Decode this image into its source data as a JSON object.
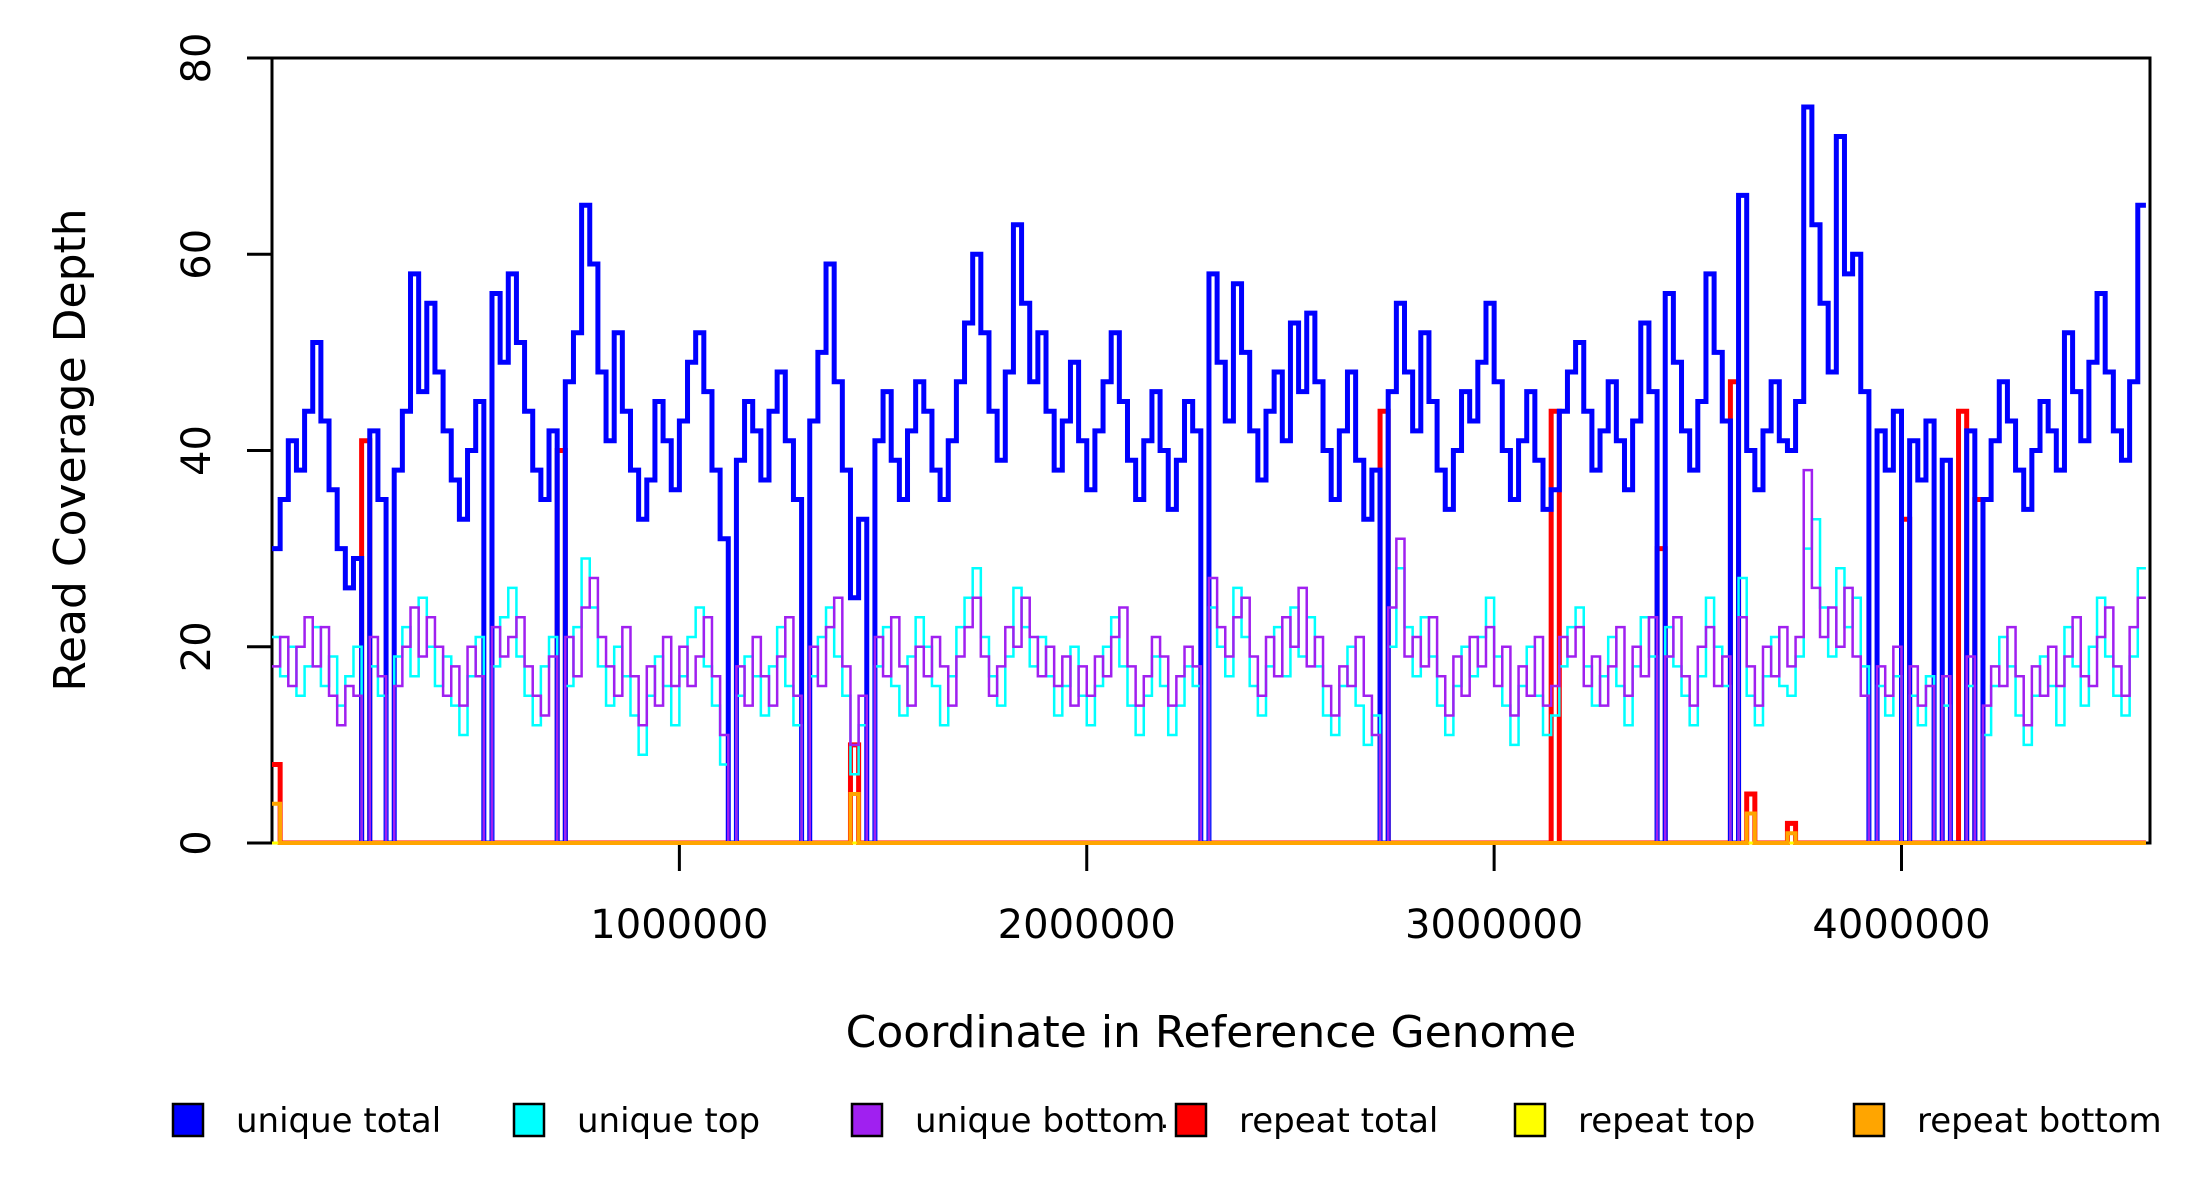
{
  "chart_data": {
    "type": "line",
    "subtype": "step-coverage",
    "title": "",
    "xlabel": "Coordinate in Reference Genome",
    "ylabel": "Read Coverage Depth",
    "xlim": [
      0,
      4610000
    ],
    "ylim": [
      0,
      80
    ],
    "x_ticks": [
      1000000,
      2000000,
      3000000,
      4000000
    ],
    "y_ticks": [
      0,
      20,
      40,
      60,
      80
    ],
    "grid": false,
    "legend_position": "bottom",
    "bin_size": 20000,
    "draw_order": [
      "repeat total",
      "repeat top",
      "unique total",
      "unique top",
      "unique bottom",
      "repeat bottom"
    ],
    "series": [
      {
        "name": "unique total",
        "color": "#0000FF",
        "width": 5,
        "values": [
          30,
          35,
          41,
          38,
          44,
          51,
          43,
          36,
          30,
          26,
          29,
          0,
          42,
          35,
          0,
          38,
          44,
          58,
          46,
          55,
          48,
          42,
          37,
          33,
          40,
          45,
          0,
          56,
          49,
          58,
          51,
          44,
          38,
          35,
          42,
          0,
          47,
          52,
          65,
          59,
          48,
          41,
          52,
          44,
          38,
          33,
          37,
          45,
          41,
          36,
          43,
          49,
          52,
          46,
          38,
          31,
          0,
          39,
          45,
          42,
          37,
          44,
          48,
          41,
          35,
          0,
          43,
          50,
          59,
          47,
          38,
          25,
          33,
          0,
          41,
          46,
          39,
          35,
          42,
          47,
          44,
          38,
          35,
          41,
          47,
          53,
          60,
          52,
          44,
          39,
          48,
          63,
          55,
          47,
          52,
          44,
          38,
          43,
          49,
          41,
          36,
          42,
          47,
          52,
          45,
          39,
          35,
          41,
          46,
          40,
          34,
          39,
          45,
          42,
          0,
          58,
          49,
          43,
          57,
          50,
          42,
          37,
          44,
          48,
          41,
          53,
          46,
          54,
          47,
          40,
          35,
          42,
          48,
          39,
          33,
          38,
          0,
          46,
          55,
          48,
          42,
          52,
          45,
          38,
          34,
          40,
          46,
          43,
          49,
          55,
          47,
          40,
          35,
          41,
          46,
          39,
          34,
          36,
          44,
          48,
          51,
          44,
          38,
          42,
          47,
          41,
          36,
          43,
          53,
          46,
          0,
          56,
          49,
          42,
          38,
          45,
          58,
          50,
          43,
          0,
          66,
          40,
          36,
          42,
          47,
          41,
          40,
          45,
          75,
          63,
          55,
          48,
          72,
          58,
          60,
          46,
          0,
          42,
          38,
          44,
          0,
          41,
          37,
          43,
          0,
          39,
          0,
          0,
          42,
          0,
          35,
          41,
          47,
          43,
          38,
          34,
          40,
          45,
          42,
          38,
          52,
          46,
          41,
          49,
          56,
          48,
          42,
          39,
          47,
          65
        ]
      },
      {
        "name": "unique top",
        "color": "#00FFFF",
        "width": 2.5,
        "values": [
          21,
          17,
          20,
          15,
          18,
          22,
          16,
          19,
          14,
          17,
          20,
          0,
          18,
          15,
          0,
          19,
          22,
          17,
          25,
          20,
          16,
          19,
          14,
          11,
          17,
          21,
          0,
          18,
          23,
          26,
          19,
          15,
          12,
          18,
          21,
          0,
          16,
          22,
          29,
          24,
          18,
          14,
          20,
          17,
          13,
          9,
          15,
          19,
          16,
          12,
          17,
          21,
          24,
          18,
          14,
          8,
          0,
          15,
          19,
          17,
          13,
          18,
          22,
          16,
          12,
          0,
          17,
          21,
          24,
          19,
          15,
          7,
          12,
          0,
          18,
          22,
          16,
          13,
          19,
          23,
          20,
          16,
          12,
          17,
          22,
          25,
          28,
          21,
          17,
          14,
          19,
          26,
          22,
          18,
          21,
          17,
          13,
          16,
          20,
          15,
          12,
          16,
          20,
          23,
          18,
          14,
          11,
          15,
          19,
          16,
          11,
          14,
          18,
          16,
          0,
          24,
          20,
          17,
          26,
          21,
          16,
          13,
          18,
          22,
          17,
          24,
          19,
          23,
          18,
          13,
          11,
          16,
          20,
          14,
          10,
          13,
          0,
          20,
          28,
          22,
          17,
          23,
          19,
          14,
          11,
          16,
          20,
          17,
          21,
          25,
          19,
          14,
          10,
          16,
          20,
          15,
          11,
          13,
          18,
          22,
          24,
          18,
          14,
          17,
          21,
          16,
          12,
          18,
          23,
          19,
          0,
          22,
          18,
          15,
          12,
          17,
          25,
          20,
          16,
          0,
          27,
          15,
          12,
          17,
          21,
          16,
          15,
          19,
          30,
          33,
          24,
          19,
          28,
          22,
          25,
          18,
          0,
          16,
          13,
          17,
          0,
          15,
          12,
          17,
          0,
          14,
          0,
          0,
          16,
          0,
          11,
          16,
          21,
          18,
          13,
          10,
          15,
          19,
          16,
          12,
          22,
          18,
          14,
          20,
          25,
          19,
          15,
          13,
          19,
          28
        ]
      },
      {
        "name": "unique bottom",
        "color": "#A020F0",
        "width": 2.5,
        "values": [
          18,
          21,
          16,
          20,
          23,
          18,
          22,
          15,
          12,
          16,
          15,
          0,
          21,
          17,
          0,
          16,
          20,
          24,
          19,
          23,
          20,
          15,
          18,
          14,
          20,
          17,
          0,
          22,
          19,
          21,
          23,
          18,
          15,
          13,
          19,
          0,
          21,
          17,
          24,
          27,
          21,
          18,
          15,
          22,
          17,
          12,
          18,
          14,
          21,
          16,
          20,
          16,
          19,
          23,
          17,
          11,
          0,
          18,
          14,
          21,
          17,
          14,
          19,
          23,
          15,
          0,
          20,
          16,
          22,
          25,
          18,
          10,
          15,
          0,
          21,
          17,
          23,
          18,
          14,
          20,
          17,
          21,
          18,
          14,
          19,
          22,
          25,
          19,
          15,
          18,
          22,
          20,
          25,
          21,
          17,
          20,
          16,
          19,
          14,
          18,
          15,
          19,
          17,
          21,
          24,
          18,
          14,
          17,
          21,
          19,
          14,
          17,
          20,
          18,
          0,
          27,
          22,
          19,
          23,
          25,
          19,
          15,
          21,
          17,
          23,
          20,
          26,
          18,
          21,
          16,
          13,
          18,
          16,
          21,
          15,
          11,
          0,
          24,
          31,
          19,
          21,
          18,
          23,
          17,
          13,
          19,
          15,
          21,
          18,
          22,
          16,
          20,
          13,
          18,
          15,
          21,
          14,
          16,
          21,
          19,
          22,
          16,
          19,
          14,
          18,
          22,
          15,
          20,
          17,
          23,
          0,
          19,
          23,
          17,
          14,
          20,
          22,
          16,
          19,
          0,
          23,
          18,
          14,
          20,
          17,
          22,
          18,
          21,
          38,
          26,
          21,
          24,
          20,
          26,
          19,
          15,
          0,
          18,
          15,
          20,
          0,
          18,
          14,
          16,
          0,
          17,
          0,
          0,
          19,
          0,
          14,
          18,
          16,
          22,
          17,
          12,
          18,
          15,
          20,
          16,
          19,
          23,
          17,
          16,
          21,
          24,
          18,
          15,
          22,
          25
        ]
      },
      {
        "name": "repeat total",
        "color": "#FF0000",
        "width": 5,
        "baseline": 0,
        "spikes": [
          {
            "bin": 0,
            "v": 8
          },
          {
            "bin": 11,
            "v": 41
          },
          {
            "bin": 35,
            "v": 40
          },
          {
            "bin": 71,
            "v": 10
          },
          {
            "bin": 136,
            "v": 44
          },
          {
            "bin": 157,
            "v": 44
          },
          {
            "bin": 170,
            "v": 30
          },
          {
            "bin": 179,
            "v": 47
          },
          {
            "bin": 181,
            "v": 5
          },
          {
            "bin": 186,
            "v": 2
          },
          {
            "bin": 200,
            "v": 33
          },
          {
            "bin": 207,
            "v": 44
          },
          {
            "bin": 209,
            "v": 35
          }
        ]
      },
      {
        "name": "repeat top",
        "color": "#FFFF00",
        "width": 3,
        "baseline": 0,
        "spikes": []
      },
      {
        "name": "repeat bottom",
        "color": "#FFA500",
        "width": 4,
        "baseline": 0,
        "spikes": [
          {
            "bin": 0,
            "v": 4
          },
          {
            "bin": 71,
            "v": 5
          },
          {
            "bin": 181,
            "v": 3
          },
          {
            "bin": 186,
            "v": 1
          }
        ]
      }
    ],
    "legend": [
      {
        "label": "unique total",
        "color": "#0000FF"
      },
      {
        "label": "unique top",
        "color": "#00FFFF"
      },
      {
        "label": "unique bottom",
        "color": "#A020F0"
      },
      {
        "label": "repeat total",
        "color": "#FF0000"
      },
      {
        "label": "repeat top",
        "color": "#FFFF00"
      },
      {
        "label": "repeat bottom",
        "color": "#FFA500"
      }
    ]
  },
  "layout_text": {
    "stray_dot": "."
  }
}
